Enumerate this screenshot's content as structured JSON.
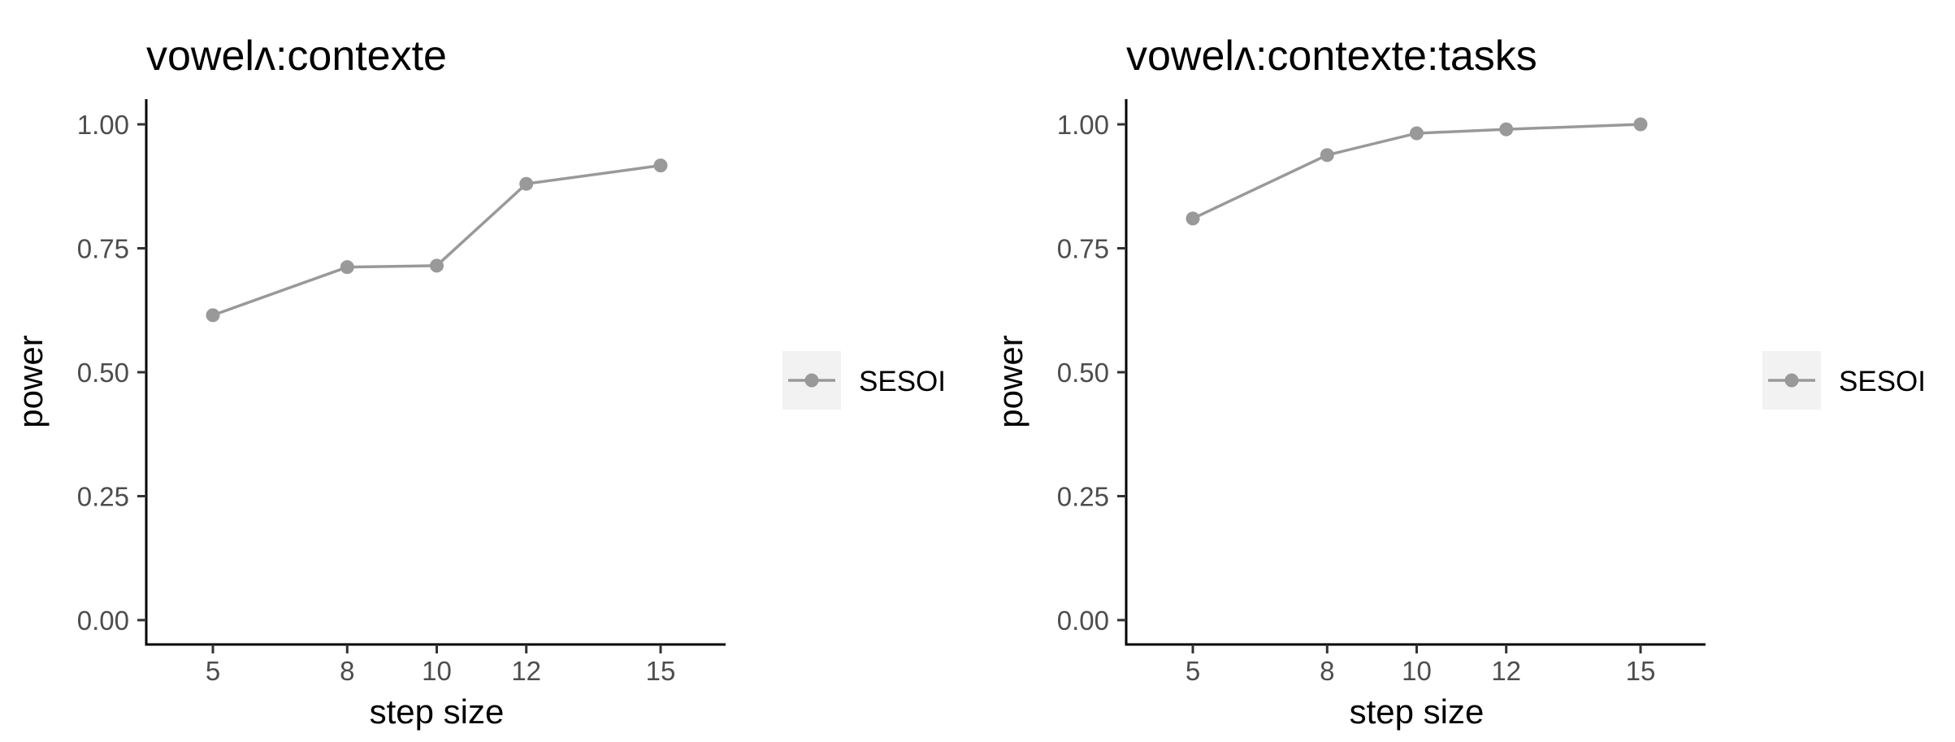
{
  "chart_data": [
    {
      "type": "line",
      "title": "vowelʌ:contexte",
      "xlabel": "step size",
      "ylabel": "power",
      "x": [
        5,
        8,
        10,
        12,
        15
      ],
      "x_ticks": [
        "5",
        "8",
        "10",
        "12",
        "15"
      ],
      "y_ticks": [
        "0.00",
        "0.25",
        "0.50",
        "0.75",
        "1.00"
      ],
      "ylim": [
        0,
        1
      ],
      "grid": false,
      "legend_position": "right",
      "series": [
        {
          "name": "SESOI",
          "color": "#999999",
          "values": [
            0.615,
            0.712,
            0.715,
            0.88,
            0.917
          ]
        }
      ]
    },
    {
      "type": "line",
      "title": "vowelʌ:contexte:tasks",
      "xlabel": "step size",
      "ylabel": "power",
      "x": [
        5,
        8,
        10,
        12,
        15
      ],
      "x_ticks": [
        "5",
        "8",
        "10",
        "12",
        "15"
      ],
      "y_ticks": [
        "0.00",
        "0.25",
        "0.50",
        "0.75",
        "1.00"
      ],
      "ylim": [
        0,
        1
      ],
      "grid": false,
      "legend_position": "right",
      "series": [
        {
          "name": "SESOI",
          "color": "#999999",
          "values": [
            0.81,
            0.938,
            0.982,
            0.99,
            1.0
          ]
        }
      ]
    }
  ]
}
